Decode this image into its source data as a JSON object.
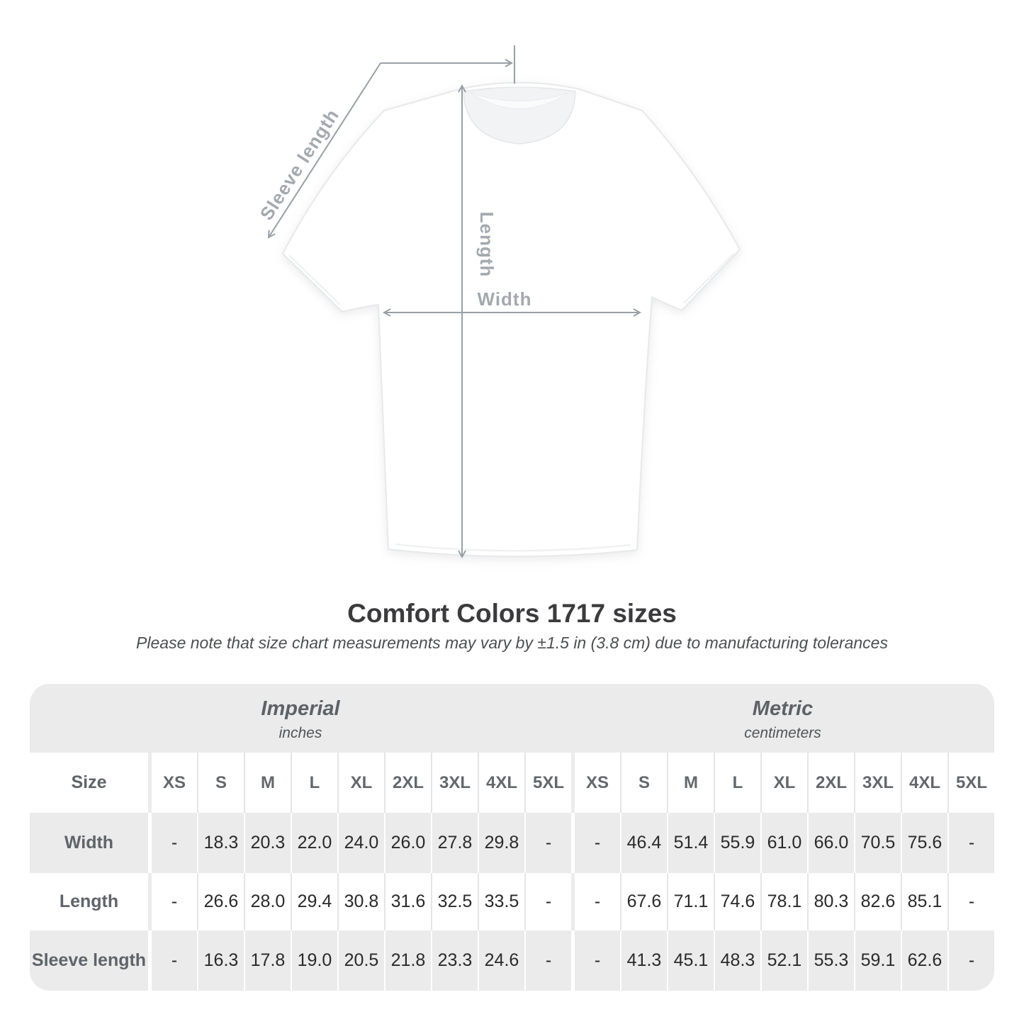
{
  "diagram": {
    "sleeve_label": "Sleeve length",
    "length_label": "Length",
    "width_label": "Width"
  },
  "heading": {
    "title": "Comfort Colors 1717 sizes",
    "note": "Please note that size chart measurements may vary by ±1.5 in (3.8 cm) due to manufacturing tolerances"
  },
  "chart_data": {
    "type": "table",
    "title": "Comfort Colors 1717 sizes",
    "note": "Please note that size chart measurements may vary by ±1.5 in (3.8 cm) due to manufacturing tolerances",
    "size_column_header": "Size",
    "sizes": [
      "XS",
      "S",
      "M",
      "L",
      "XL",
      "2XL",
      "3XL",
      "4XL",
      "5XL"
    ],
    "groups": [
      {
        "name": "Imperial",
        "unit": "inches",
        "key": "imperial"
      },
      {
        "name": "Metric",
        "unit": "centimeters",
        "key": "metric"
      }
    ],
    "rows": [
      {
        "label": "Width",
        "imperial": [
          "-",
          "18.3",
          "20.3",
          "22.0",
          "24.0",
          "26.0",
          "27.8",
          "29.8",
          "-"
        ],
        "metric": [
          "-",
          "46.4",
          "51.4",
          "55.9",
          "61.0",
          "66.0",
          "70.5",
          "75.6",
          "-"
        ]
      },
      {
        "label": "Length",
        "imperial": [
          "-",
          "26.6",
          "28.0",
          "29.4",
          "30.8",
          "31.6",
          "32.5",
          "33.5",
          "-"
        ],
        "metric": [
          "-",
          "67.6",
          "71.1",
          "74.6",
          "78.1",
          "80.3",
          "82.6",
          "85.1",
          "-"
        ]
      },
      {
        "label": "Sleeve length",
        "imperial": [
          "-",
          "16.3",
          "17.8",
          "19.0",
          "20.5",
          "21.8",
          "23.3",
          "24.6",
          "-"
        ],
        "metric": [
          "-",
          "41.3",
          "45.1",
          "48.3",
          "52.1",
          "55.3",
          "59.1",
          "62.6",
          "-"
        ]
      }
    ]
  },
  "colors": {
    "table_gray": "#ebebeb",
    "value_text": "#2a2a2a",
    "label_text": "#5f646a",
    "diagram_line": "#98a0a6",
    "diagram_text": "#a3a9af",
    "title_text": "#3b3b3d"
  }
}
